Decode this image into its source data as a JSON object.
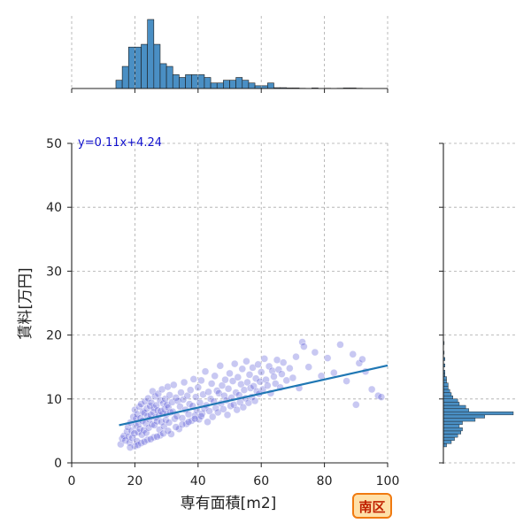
{
  "chart_data": {
    "type": "scatter",
    "xlabel": "専有面積[m2]",
    "ylabel": "賃料[万円]",
    "xlim": [
      0,
      100
    ],
    "ylim": [
      0,
      50
    ],
    "x_ticks": [
      0,
      20,
      40,
      60,
      80,
      100
    ],
    "y_ticks": [
      0,
      10,
      20,
      30,
      40,
      50
    ],
    "grid": true,
    "regression": {
      "slope": 0.11,
      "intercept": 4.24,
      "label": "y=0.11x+4.24",
      "x_range": [
        15,
        100
      ]
    },
    "badge": "南区",
    "colors": {
      "points": "#3a3acf",
      "regression_line": "#1f77b4",
      "equation_text": "#1010cc",
      "histogram": "#4a8fc4",
      "histogram_edge": "#1a1a1a",
      "badge_fill": "#ffe0a8",
      "badge_border": "#f07a10",
      "badge_text": "#c02000",
      "grid": "#aaaaaa"
    },
    "marginal_x_hist": {
      "bin_width": 2,
      "bins": [
        {
          "x0": 14,
          "count": 3
        },
        {
          "x0": 16,
          "count": 8
        },
        {
          "x0": 18,
          "count": 15
        },
        {
          "x0": 20,
          "count": 15
        },
        {
          "x0": 22,
          "count": 16
        },
        {
          "x0": 24,
          "count": 25
        },
        {
          "x0": 26,
          "count": 16
        },
        {
          "x0": 28,
          "count": 9
        },
        {
          "x0": 30,
          "count": 8
        },
        {
          "x0": 32,
          "count": 5
        },
        {
          "x0": 34,
          "count": 4
        },
        {
          "x0": 36,
          "count": 5
        },
        {
          "x0": 38,
          "count": 5
        },
        {
          "x0": 40,
          "count": 5
        },
        {
          "x0": 42,
          "count": 4
        },
        {
          "x0": 44,
          "count": 2
        },
        {
          "x0": 46,
          "count": 2
        },
        {
          "x0": 48,
          "count": 3
        },
        {
          "x0": 50,
          "count": 3
        },
        {
          "x0": 52,
          "count": 4
        },
        {
          "x0": 54,
          "count": 3
        },
        {
          "x0": 56,
          "count": 2
        },
        {
          "x0": 58,
          "count": 1
        },
        {
          "x0": 60,
          "count": 1
        },
        {
          "x0": 62,
          "count": 2
        },
        {
          "x0": 64,
          "count": 0.3
        },
        {
          "x0": 66,
          "count": 0.3
        },
        {
          "x0": 68,
          "count": 0.2
        },
        {
          "x0": 70,
          "count": 0.2
        },
        {
          "x0": 72,
          "count": 0.1
        },
        {
          "x0": 76,
          "count": 0.2
        },
        {
          "x0": 80,
          "count": 0.1
        },
        {
          "x0": 84,
          "count": 0.1
        },
        {
          "x0": 86,
          "count": 0.2
        },
        {
          "x0": 88,
          "count": 0.2
        },
        {
          "x0": 90,
          "count": 0.1
        }
      ]
    },
    "marginal_y_hist": {
      "bin_width": 0.5,
      "bins": [
        {
          "y0": 2.5,
          "count": 2
        },
        {
          "y0": 3.0,
          "count": 5
        },
        {
          "y0": 3.5,
          "count": 7
        },
        {
          "y0": 4.0,
          "count": 9
        },
        {
          "y0": 4.5,
          "count": 11
        },
        {
          "y0": 5.0,
          "count": 12
        },
        {
          "y0": 5.5,
          "count": 10
        },
        {
          "y0": 6.0,
          "count": 12
        },
        {
          "y0": 6.5,
          "count": 20
        },
        {
          "y0": 7.0,
          "count": 26
        },
        {
          "y0": 7.5,
          "count": 44
        },
        {
          "y0": 8.0,
          "count": 16
        },
        {
          "y0": 8.5,
          "count": 14
        },
        {
          "y0": 9.0,
          "count": 10
        },
        {
          "y0": 9.5,
          "count": 9
        },
        {
          "y0": 10.0,
          "count": 6
        },
        {
          "y0": 10.5,
          "count": 5
        },
        {
          "y0": 11.0,
          "count": 4
        },
        {
          "y0": 11.5,
          "count": 3
        },
        {
          "y0": 12.0,
          "count": 3
        },
        {
          "y0": 12.5,
          "count": 2
        },
        {
          "y0": 13.0,
          "count": 2
        },
        {
          "y0": 13.5,
          "count": 1
        },
        {
          "y0": 14.0,
          "count": 1
        },
        {
          "y0": 15.0,
          "count": 1
        },
        {
          "y0": 16.0,
          "count": 1
        },
        {
          "y0": 17.0,
          "count": 0.5
        },
        {
          "y0": 18.5,
          "count": 0.5
        }
      ]
    },
    "points": [
      [
        15.5,
        2.9
      ],
      [
        16,
        3.8
      ],
      [
        16.5,
        4.2
      ],
      [
        17,
        3.5
      ],
      [
        17.5,
        4.9
      ],
      [
        17.8,
        5.6
      ],
      [
        18,
        4.1
      ],
      [
        18.3,
        3.2
      ],
      [
        18.6,
        6.3
      ],
      [
        19,
        5.0
      ],
      [
        19.2,
        3.9
      ],
      [
        19.5,
        7.2
      ],
      [
        19.8,
        4.6
      ],
      [
        20,
        8.3
      ],
      [
        20.2,
        5.8
      ],
      [
        20.4,
        6.9
      ],
      [
        20.6,
        3.4
      ],
      [
        20.8,
        7.6
      ],
      [
        21,
        4.8
      ],
      [
        21.2,
        6.1
      ],
      [
        21.4,
        8.8
      ],
      [
        21.6,
        5.3
      ],
      [
        21.8,
        7.0
      ],
      [
        22,
        9.2
      ],
      [
        22.2,
        4.4
      ],
      [
        22.4,
        6.6
      ],
      [
        22.6,
        8.0
      ],
      [
        22.8,
        5.1
      ],
      [
        23,
        7.8
      ],
      [
        23.2,
        9.6
      ],
      [
        23.4,
        6.2
      ],
      [
        23.6,
        4.7
      ],
      [
        23.8,
        8.5
      ],
      [
        24,
        7.3
      ],
      [
        24.2,
        10.1
      ],
      [
        24.4,
        5.5
      ],
      [
        24.6,
        6.8
      ],
      [
        24.8,
        8.9
      ],
      [
        25,
        7.5
      ],
      [
        25.2,
        9.4
      ],
      [
        25.4,
        6.0
      ],
      [
        25.6,
        11.2
      ],
      [
        25.8,
        7.9
      ],
      [
        26,
        8.6
      ],
      [
        26.2,
        5.9
      ],
      [
        26.4,
        10.4
      ],
      [
        26.6,
        7.1
      ],
      [
        26.8,
        9.0
      ],
      [
        27,
        6.5
      ],
      [
        27.2,
        8.2
      ],
      [
        27.4,
        10.8
      ],
      [
        27.6,
        7.4
      ],
      [
        27.8,
        5.2
      ],
      [
        28,
        9.8
      ],
      [
        28.2,
        8.1
      ],
      [
        28.4,
        6.4
      ],
      [
        28.6,
        11.5
      ],
      [
        28.8,
        7.7
      ],
      [
        29,
        9.3
      ],
      [
        29.2,
        5.7
      ],
      [
        29.4,
        8.4
      ],
      [
        29.6,
        10.0
      ],
      [
        29.8,
        6.7
      ],
      [
        30,
        7.6
      ],
      [
        30.2,
        9.1
      ],
      [
        30.4,
        11.9
      ],
      [
        30.6,
        8.7
      ],
      [
        30.8,
        6.3
      ],
      [
        31,
        10.6
      ],
      [
        31.2,
        7.9
      ],
      [
        31.5,
        4.5
      ],
      [
        31.8,
        9.5
      ],
      [
        32,
        8.0
      ],
      [
        32.3,
        12.2
      ],
      [
        32.6,
        6.9
      ],
      [
        33,
        10.2
      ],
      [
        33.3,
        7.3
      ],
      [
        33.6,
        9.7
      ],
      [
        34,
        5.3
      ],
      [
        34.3,
        8.8
      ],
      [
        34.6,
        11.0
      ],
      [
        35,
        7.0
      ],
      [
        35.3,
        9.9
      ],
      [
        35.6,
        12.6
      ],
      [
        36,
        8.3
      ],
      [
        36.3,
        6.1
      ],
      [
        36.6,
        10.5
      ],
      [
        37,
        7.6
      ],
      [
        37.3,
        9.2
      ],
      [
        37.6,
        11.4
      ],
      [
        38,
        6.6
      ],
      [
        38.3,
        8.9
      ],
      [
        38.6,
        13.1
      ],
      [
        39,
        7.4
      ],
      [
        39.3,
        10.3
      ],
      [
        39.6,
        8.2
      ],
      [
        40,
        11.8
      ],
      [
        40.3,
        6.8
      ],
      [
        40.6,
        9.4
      ],
      [
        41,
        12.9
      ],
      [
        41.3,
        7.7
      ],
      [
        41.6,
        10.7
      ],
      [
        42,
        8.5
      ],
      [
        42.3,
        14.3
      ],
      [
        42.6,
        9.0
      ],
      [
        43,
        6.4
      ],
      [
        43.3,
        11.1
      ],
      [
        43.6,
        8.1
      ],
      [
        44,
        10.0
      ],
      [
        44.3,
        12.4
      ],
      [
        44.6,
        7.2
      ],
      [
        45,
        9.6
      ],
      [
        45.3,
        13.6
      ],
      [
        45.6,
        8.6
      ],
      [
        46,
        11.3
      ],
      [
        46.3,
        7.9
      ],
      [
        46.6,
        10.9
      ],
      [
        47,
        15.2
      ],
      [
        47.3,
        9.3
      ],
      [
        47.6,
        12.1
      ],
      [
        48,
        8.4
      ],
      [
        48.3,
        10.5
      ],
      [
        48.6,
        13.0
      ],
      [
        49,
        9.8
      ],
      [
        49.3,
        7.5
      ],
      [
        49.6,
        11.6
      ],
      [
        50,
        14.0
      ],
      [
        50.3,
        8.9
      ],
      [
        50.6,
        10.2
      ],
      [
        51,
        12.8
      ],
      [
        51.3,
        9.1
      ],
      [
        51.6,
        15.5
      ],
      [
        52,
        11.0
      ],
      [
        52.3,
        8.3
      ],
      [
        52.6,
        13.4
      ],
      [
        53,
        10.6
      ],
      [
        53.3,
        9.5
      ],
      [
        53.6,
        12.3
      ],
      [
        54,
        14.7
      ],
      [
        54.3,
        8.7
      ],
      [
        54.6,
        11.4
      ],
      [
        55,
        10.1
      ],
      [
        55.3,
        15.9
      ],
      [
        55.6,
        12.6
      ],
      [
        56,
        9.4
      ],
      [
        56.3,
        13.8
      ],
      [
        56.6,
        11.7
      ],
      [
        57,
        10.3
      ],
      [
        57.3,
        14.9
      ],
      [
        57.6,
        12.0
      ],
      [
        58,
        9.7
      ],
      [
        58.3,
        13.2
      ],
      [
        58.6,
        11.2
      ],
      [
        59,
        15.4
      ],
      [
        59.3,
        10.8
      ],
      [
        59.6,
        12.7
      ],
      [
        60,
        14.2
      ],
      [
        60.5,
        11.5
      ],
      [
        61,
        16.3
      ],
      [
        61.5,
        13.0
      ],
      [
        62,
        12.1
      ],
      [
        62.5,
        15.1
      ],
      [
        63,
        10.9
      ],
      [
        63.5,
        14.4
      ],
      [
        64,
        13.5
      ],
      [
        64.5,
        12.4
      ],
      [
        65,
        16.1
      ],
      [
        65.5,
        14.6
      ],
      [
        66,
        11.8
      ],
      [
        66.5,
        13.9
      ],
      [
        67,
        15.7
      ],
      [
        68,
        12.9
      ],
      [
        69,
        14.8
      ],
      [
        70,
        13.3
      ],
      [
        71,
        16.6
      ],
      [
        72,
        11.7
      ],
      [
        73,
        18.9
      ],
      [
        73.5,
        18.2
      ],
      [
        75,
        15.0
      ],
      [
        77,
        17.3
      ],
      [
        79,
        13.6
      ],
      [
        81,
        16.4
      ],
      [
        83,
        14.1
      ],
      [
        85,
        18.5
      ],
      [
        87,
        12.8
      ],
      [
        89,
        17.0
      ],
      [
        90,
        9.1
      ],
      [
        91,
        15.6
      ],
      [
        92,
        16.2
      ],
      [
        93,
        14.3
      ],
      [
        95,
        11.5
      ],
      [
        97,
        10.5
      ],
      [
        98,
        10.3
      ],
      [
        20,
        2.6
      ],
      [
        22,
        3.1
      ],
      [
        24,
        3.6
      ],
      [
        26,
        4.0
      ],
      [
        28,
        4.3
      ],
      [
        18.5,
        2.4
      ],
      [
        21,
        2.8
      ],
      [
        23,
        3.3
      ],
      [
        25,
        3.7
      ],
      [
        27,
        4.1
      ],
      [
        29,
        4.6
      ],
      [
        30.5,
        5.0
      ],
      [
        33,
        5.6
      ],
      [
        35,
        6.0
      ],
      [
        37,
        6.4
      ],
      [
        39,
        6.9
      ],
      [
        41,
        7.3
      ]
    ]
  }
}
